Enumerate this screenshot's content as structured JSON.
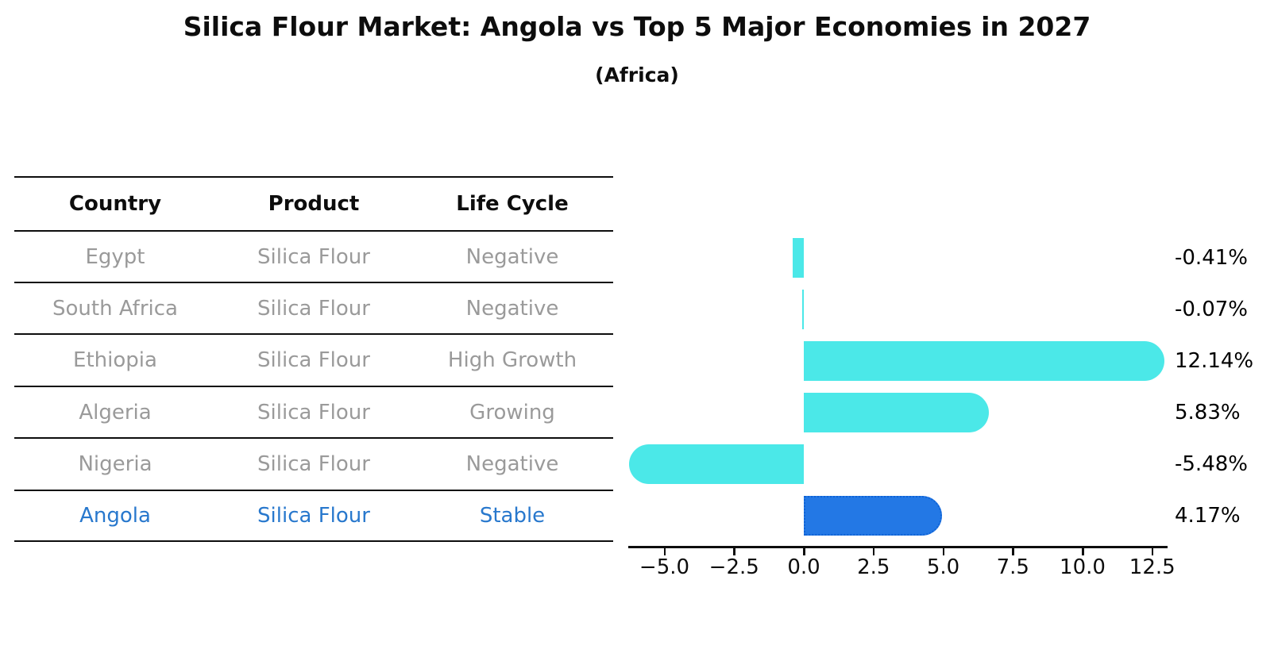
{
  "page": {
    "title": "Silica Flour Market: Angola vs Top 5 Major Economies in 2027",
    "subtitle": "(Africa)"
  },
  "table": {
    "headers": [
      "Country",
      "Product",
      "Life Cycle"
    ],
    "rows": [
      {
        "country": "Egypt",
        "product": "Silica Flour",
        "life_cycle": "Negative",
        "highlighted": false
      },
      {
        "country": "South Africa",
        "product": "Silica Flour",
        "life_cycle": "Negative",
        "highlighted": false
      },
      {
        "country": "Ethiopia",
        "product": "Silica Flour",
        "life_cycle": "High Growth",
        "highlighted": false
      },
      {
        "country": "Algeria",
        "product": "Silica Flour",
        "life_cycle": "Growing",
        "highlighted": false
      },
      {
        "country": "Nigeria",
        "product": "Silica Flour",
        "life_cycle": "Negative",
        "highlighted": false
      },
      {
        "country": "Angola",
        "product": "Silica Flour",
        "life_cycle": "Stable",
        "highlighted": true
      }
    ]
  },
  "chart_data": {
    "type": "bar",
    "orientation": "horizontal",
    "title": "Silica Flour Market: Angola vs Top 5 Major Economies in 2027",
    "subtitle": "(Africa)",
    "categories": [
      "Egypt",
      "South Africa",
      "Ethiopia",
      "Algeria",
      "Nigeria",
      "Angola"
    ],
    "values": [
      -0.41,
      -0.07,
      12.14,
      5.83,
      -5.48,
      4.17
    ],
    "value_labels": [
      "-0.41%",
      "-0.07%",
      "12.14%",
      "5.83%",
      "-5.48%",
      "4.17%"
    ],
    "xlabel": "",
    "ylabel": "",
    "xlim": [
      -6.3,
      13.05
    ],
    "xticks": [
      -5.0,
      -2.5,
      0.0,
      2.5,
      5.0,
      7.5,
      10.0,
      12.5
    ],
    "xtick_labels": [
      "−5.0",
      "−2.5",
      "0.0",
      "2.5",
      "5.0",
      "7.5",
      "10.0",
      "12.5"
    ],
    "grid": false,
    "legend": false,
    "bar_color": "#4be8e8",
    "highlight_index": 5,
    "highlight_color": "#2378e5",
    "highlight_border_color": "#0f63d6",
    "highlight_text_color": "#2878cd"
  },
  "colors": {
    "background": "#ffffff",
    "line": "#0d0d0d",
    "table_text": "#9a9a9a",
    "value_text": "#000000"
  }
}
